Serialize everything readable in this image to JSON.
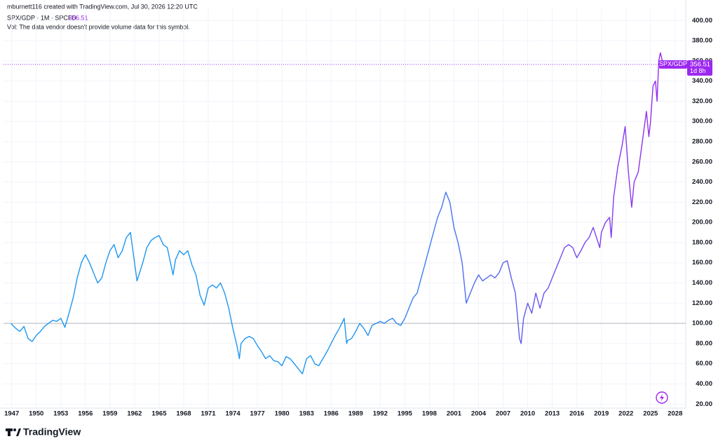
{
  "header": {
    "credit": "mburnett116 created with TradingView.com, Jul 30, 2026 12:20 UTC",
    "legend_title": "SPX/GDP · 1M · SPCFD",
    "volume_note": "Vol: The data vendor doesn't provide volume data for this symbol."
  },
  "chart_data": {
    "type": "line",
    "x": [
      1946.9,
      1947.5,
      1948,
      1948.5,
      1949,
      1949.5,
      1950,
      1950.5,
      1951,
      1951.5,
      1952,
      1952.5,
      1953,
      1953.5,
      1954,
      1954.5,
      1955,
      1955.5,
      1956,
      1956.5,
      1957,
      1957.5,
      1958,
      1958.5,
      1959,
      1959.5,
      1960,
      1960.5,
      1961,
      1961.5,
      1962,
      1962.3,
      1963,
      1963.5,
      1964,
      1964.5,
      1965,
      1965.5,
      1966,
      1966.7,
      1967,
      1967.5,
      1968,
      1968.5,
      1969,
      1969.5,
      1970,
      1970.5,
      1971,
      1971.5,
      1972,
      1972.5,
      1973,
      1973.5,
      1974,
      1974.5,
      1974.8,
      1975,
      1975.5,
      1976,
      1976.5,
      1977,
      1977.5,
      1978,
      1978.5,
      1979,
      1979.5,
      1980,
      1980.5,
      1981,
      1981.5,
      1982,
      1982.5,
      1983,
      1983.5,
      1984,
      1984.5,
      1985,
      1985.5,
      1986,
      1986.5,
      1987,
      1987.6,
      1987.9,
      1988,
      1988.5,
      1989,
      1989.5,
      1990,
      1990.5,
      1991,
      1991.5,
      1992,
      1992.5,
      1993,
      1993.5,
      1994,
      1994.5,
      1995,
      1995.5,
      1996,
      1996.5,
      1997,
      1997.5,
      1998,
      1998.5,
      1999,
      1999.5,
      2000,
      2000.5,
      2001,
      2001.5,
      2002,
      2002.5,
      2003,
      2003.5,
      2004,
      2004.5,
      2005,
      2005.5,
      2006,
      2006.5,
      2007,
      2007.5,
      2008,
      2008.5,
      2009,
      2009.2,
      2009.5,
      2010,
      2010.5,
      2011,
      2011.5,
      2012,
      2012.5,
      2013,
      2013.5,
      2014,
      2014.5,
      2015,
      2015.5,
      2016,
      2016.5,
      2017,
      2017.5,
      2018,
      2018.8,
      2019,
      2019.5,
      2020,
      2020.2,
      2020.5,
      2021,
      2021.5,
      2021.9,
      2022.3,
      2022.7,
      2023,
      2023.5,
      2024,
      2024.5,
      2024.8,
      2025,
      2025.3,
      2025.6,
      2025.8,
      2026,
      2026.2,
      2026.55
    ],
    "series": [
      {
        "name": "SPX/GDP",
        "values": [
          100,
          95,
          92,
          97,
          85,
          82,
          88,
          92,
          97,
          100,
          103,
          102,
          105,
          96,
          110,
          125,
          145,
          160,
          168,
          160,
          150,
          140,
          145,
          160,
          172,
          178,
          165,
          172,
          185,
          190,
          160,
          142,
          160,
          175,
          182,
          185,
          187,
          178,
          175,
          148,
          163,
          172,
          168,
          172,
          158,
          148,
          128,
          118,
          135,
          138,
          135,
          140,
          130,
          115,
          95,
          78,
          65,
          80,
          85,
          87,
          85,
          78,
          72,
          65,
          68,
          63,
          62,
          58,
          67,
          65,
          60,
          55,
          50,
          65,
          68,
          60,
          58,
          65,
          72,
          80,
          88,
          95,
          105,
          80,
          83,
          85,
          92,
          100,
          95,
          88,
          98,
          100,
          102,
          100,
          103,
          105,
          100,
          98,
          105,
          115,
          125,
          130,
          145,
          160,
          175,
          190,
          205,
          215,
          230,
          220,
          195,
          180,
          160,
          120,
          130,
          140,
          148,
          142,
          145,
          148,
          145,
          150,
          160,
          162,
          145,
          130,
          85,
          80,
          105,
          120,
          110,
          130,
          115,
          130,
          135,
          145,
          155,
          165,
          175,
          178,
          175,
          165,
          172,
          180,
          185,
          195,
          175,
          190,
          200,
          205,
          185,
          225,
          255,
          275,
          295,
          250,
          215,
          240,
          250,
          280,
          310,
          285,
          300,
          335,
          340,
          320,
          360,
          368,
          356.51
        ]
      }
    ],
    "colors": [
      "#1e96f0",
      "#9c27f0"
    ],
    "countdown": "1d 8h",
    "baseline": 100,
    "xlim": [
      1946,
      2029.3
    ],
    "xticks": [
      1947,
      1950,
      1953,
      1956,
      1959,
      1962,
      1965,
      1968,
      1971,
      1974,
      1977,
      1980,
      1983,
      1986,
      1989,
      1992,
      1995,
      1998,
      2001,
      2004,
      2007,
      2010,
      2013,
      2016,
      2019,
      2022,
      2025,
      2028
    ],
    "ylim": [
      16,
      412
    ],
    "yticks": [
      {
        "value": 20,
        "label": "20.00"
      },
      {
        "value": 40,
        "label": "40.00"
      },
      {
        "value": 60,
        "label": "60.00"
      },
      {
        "value": 80,
        "label": "80.00"
      },
      {
        "value": 100,
        "label": "100.00"
      },
      {
        "value": 120,
        "label": "120.00"
      },
      {
        "value": 140,
        "label": "140.00"
      },
      {
        "value": 160,
        "label": "160.00"
      },
      {
        "value": 180,
        "label": "180.00"
      },
      {
        "value": 200,
        "label": "200.00"
      },
      {
        "value": 220,
        "label": "220.00"
      },
      {
        "value": 240,
        "label": "240.00"
      },
      {
        "value": 260,
        "label": "260.00"
      },
      {
        "value": 280,
        "label": "280.00"
      },
      {
        "value": 300,
        "label": "300.00"
      },
      {
        "value": 320,
        "label": "320.00"
      },
      {
        "value": 340,
        "label": "340.00"
      },
      {
        "value": 360,
        "label": "360.00"
      },
      {
        "value": 380,
        "label": "380.00"
      },
      {
        "value": 400,
        "label": "400.00"
      }
    ],
    "grid": true
  },
  "footer": {
    "brand": "TradingView"
  }
}
